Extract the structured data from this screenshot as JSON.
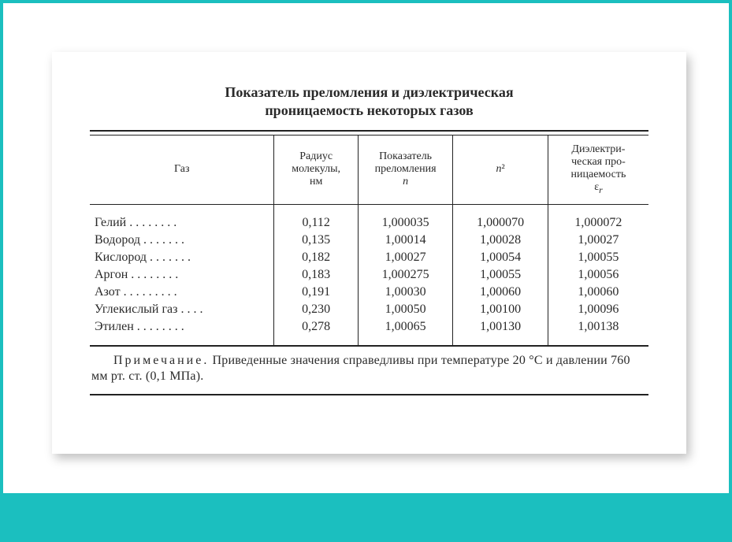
{
  "colors": {
    "frame": "#1bbfbf",
    "paper": "#ffffff",
    "text": "#2a2a2a",
    "rule": "#222222"
  },
  "title_line1": "Показатель преломления и диэлектрическая",
  "title_line2": "проницаемость некоторых газов",
  "table": {
    "columns": [
      "Газ",
      "Радиус молекулы, нм",
      "Показатель преломления n",
      "n²",
      "Диэлектрическая проницаемость ε_r"
    ],
    "col_html": [
      "Газ",
      "Радиус<br>молекулы,<br>нм",
      "Показатель<br>преломления<br><i>n</i>",
      "<i>n</i>²",
      "Диэлектри-<br>ческая про-<br>ницаемость<br>ε<sub><i>r</i></sub>"
    ],
    "rows": [
      {
        "name": "Гелий",
        "radius": "0,112",
        "n": "1,000035",
        "n2": "1,000070",
        "er": "1,000072"
      },
      {
        "name": "Водород",
        "radius": "0,135",
        "n": "1,00014",
        "n2": "1,00028",
        "er": "1,00027"
      },
      {
        "name": "Кислород",
        "radius": "0,182",
        "n": "1,00027",
        "n2": "1,00054",
        "er": "1,00055"
      },
      {
        "name": "Аргон",
        "radius": "0,183",
        "n": "1,000275",
        "n2": "1,00055",
        "er": "1,00056"
      },
      {
        "name": "Азот",
        "radius": "0,191",
        "n": "1,00030",
        "n2": "1,00060",
        "er": "1,00060"
      },
      {
        "name": "Углекислый газ",
        "radius": "0,230",
        "n": "1,00050",
        "n2": "1,00100",
        "er": "1,00096"
      },
      {
        "name": "Этилен",
        "radius": "0,278",
        "n": "1,00065",
        "n2": "1,00130",
        "er": "1,00138"
      }
    ],
    "name_col_dot_width_ch": 22
  },
  "note_label": "Примечание.",
  "note_text": " Приведенные значения справедливы при температуре 20 °C и давлении 760 мм рт. ст. (0,1 МПа)."
}
